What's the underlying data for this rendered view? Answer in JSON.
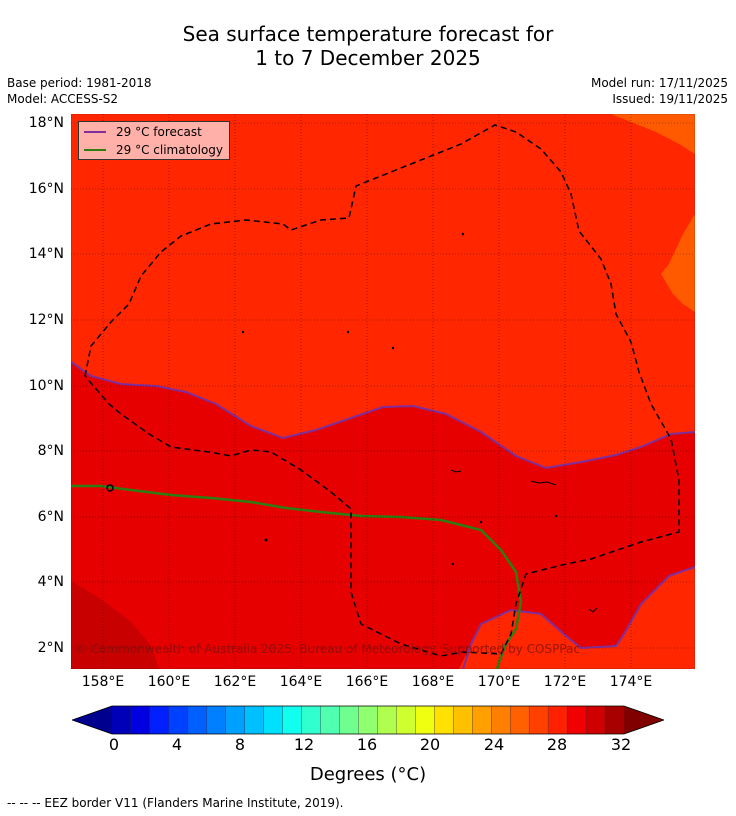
{
  "header": {
    "title_line1": "Sea surface temperature forecast for",
    "title_line2": "1 to 7 December 2025",
    "base_period": "Base period: 1981-2018",
    "model": "Model: ACCESS-S2",
    "model_run": "Model run: 17/11/2025",
    "issued": "Issued: 19/11/2025"
  },
  "map": {
    "lat_ticks": [
      "18°N",
      "16°N",
      "14°N",
      "12°N",
      "10°N",
      "8°N",
      "6°N",
      "4°N",
      "2°N"
    ],
    "lon_ticks": [
      "158°E",
      "160°E",
      "162°E",
      "164°E",
      "166°E",
      "168°E",
      "170°E",
      "172°E",
      "174°E"
    ],
    "copyright": "© Commonwealth of Australia 2025, Bureau of Meteorology. Supported by COSPPac",
    "colors": {
      "t27": "#ff5a00",
      "t28": "#ff2600",
      "t29": "#e60000",
      "t30": "#c80000"
    }
  },
  "legend": {
    "forecast_label": "29 °C  forecast",
    "forecast_color": "#7f2f9c",
    "climatology_label": "29 °C  climatology",
    "climatology_color": "#2e7d10"
  },
  "colorbar": {
    "ticks": [
      "0",
      "4",
      "8",
      "12",
      "16",
      "20",
      "24",
      "28",
      "32"
    ],
    "label": "Degrees (°C)",
    "colors": [
      "#00008f",
      "#0000b8",
      "#0000e0",
      "#0020ff",
      "#0040ff",
      "#0060ff",
      "#0080ff",
      "#00a0ff",
      "#00c0ff",
      "#00e0ff",
      "#10ffef",
      "#30ffcf",
      "#50ffaf",
      "#70ff8f",
      "#90ff70",
      "#b0ff50",
      "#d0ff30",
      "#f0ff10",
      "#ffe000",
      "#ffc000",
      "#ffa000",
      "#ff8000",
      "#ff6000",
      "#ff4000",
      "#ff2000",
      "#f00000",
      "#d00000",
      "#a80000",
      "#800000"
    ]
  },
  "footer": {
    "eez_note": "--  --  -- EEZ border V11 (Flanders Marine Institute, 2019)."
  }
}
